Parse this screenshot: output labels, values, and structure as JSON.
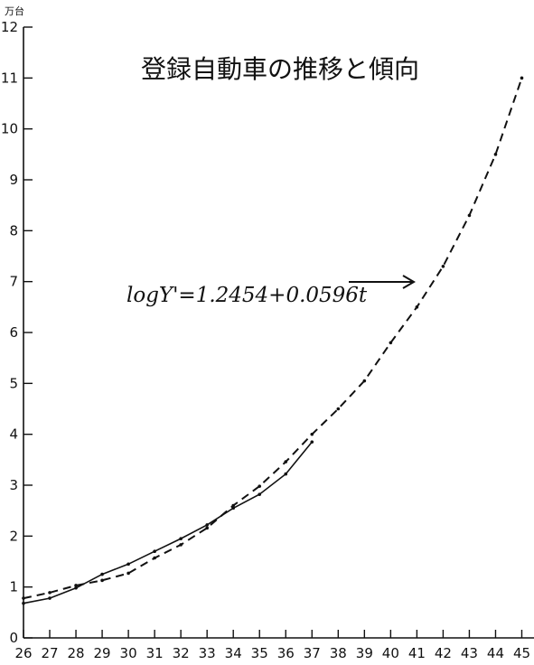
{
  "chart_data": {
    "type": "line",
    "title": "登録自動車の推移と傾向",
    "ylabel": "万台",
    "xlabel": "",
    "x": [
      26,
      27,
      28,
      29,
      30,
      31,
      32,
      33,
      34,
      35,
      36,
      37,
      38,
      39,
      40,
      41,
      42,
      43,
      44,
      45
    ],
    "xtick_labels": [
      "26",
      "27",
      "28",
      "29",
      "30",
      "31",
      "32",
      "33",
      "34",
      "35",
      "36",
      "37",
      "38",
      "39",
      "40",
      "41",
      "42",
      "43",
      "44",
      "45"
    ],
    "yticks": [
      0,
      1,
      2,
      3,
      4,
      5,
      6,
      7,
      8,
      9,
      10,
      11,
      12
    ],
    "xlim": [
      26,
      45.5
    ],
    "ylim": [
      0,
      12
    ],
    "grid": false,
    "series": [
      {
        "style": "solid",
        "x": [
          26,
          27,
          28,
          29,
          30,
          31,
          32,
          33,
          34,
          35,
          36,
          37
        ],
        "values": [
          0.68,
          0.78,
          0.98,
          1.25,
          1.45,
          1.7,
          1.95,
          2.22,
          2.55,
          2.82,
          3.22,
          3.85
        ]
      },
      {
        "style": "dashed",
        "x": [
          26,
          27,
          28,
          29,
          30,
          31,
          32,
          33,
          34,
          35,
          36,
          37,
          38,
          39,
          40,
          41,
          42,
          43,
          44,
          45
        ],
        "values": [
          0.78,
          0.89,
          1.03,
          1.13,
          1.27,
          1.57,
          1.83,
          2.16,
          2.6,
          2.98,
          3.46,
          4.0,
          4.5,
          5.05,
          5.8,
          6.5,
          7.3,
          8.3,
          9.5,
          11.0
        ]
      }
    ],
    "annotations": [
      {
        "text": "logY'=1.2454+0.0596t",
        "arrow": true
      }
    ]
  }
}
